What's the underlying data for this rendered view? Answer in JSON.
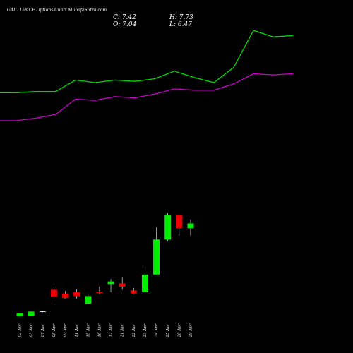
{
  "title": "GAIL 158 CE Options Chart MunafaSutra.com",
  "ohlc": {
    "c": "C: 7.42",
    "h": "H: 7.73",
    "o": "O: 7.04",
    "l": "L: 6.47"
  },
  "colors": {
    "up": "#00ee00",
    "down": "#ee0000",
    "doji": "#ffffff",
    "upper_band": "#00dd00",
    "lower_band": "#cc00cc",
    "background": "#000000"
  },
  "chart_data": {
    "type": "candlestick",
    "categories": [
      "02 Apr",
      "03 Apr",
      "07 Apr",
      "08 Apr",
      "09 Apr",
      "11 Apr",
      "15 Apr",
      "16 Apr",
      "17 Apr",
      "21 Apr",
      "22 Apr",
      "23 Apr",
      "24 Apr",
      "25 Apr",
      "28 Apr",
      "29 Apr"
    ],
    "candles": [
      {
        "date": "02 Apr",
        "open": 0.1,
        "high": 0.35,
        "low": 0.08,
        "close": 0.33
      },
      {
        "date": "03 Apr",
        "open": 0.15,
        "high": 0.5,
        "low": 0.15,
        "close": 0.48
      },
      {
        "date": "07 Apr",
        "open": 0.5,
        "high": 0.55,
        "low": 0.42,
        "close": 0.52
      },
      {
        "date": "08 Apr",
        "open": 2.2,
        "high": 2.65,
        "low": 1.25,
        "close": 1.65
      },
      {
        "date": "09 Apr",
        "open": 1.9,
        "high": 2.1,
        "low": 1.5,
        "close": 1.55
      },
      {
        "date": "11 Apr",
        "open": 2.0,
        "high": 2.25,
        "low": 1.5,
        "close": 1.72
      },
      {
        "date": "15 Apr",
        "open": 1.1,
        "high": 1.9,
        "low": 1.1,
        "close": 1.7
      },
      {
        "date": "16 Apr",
        "open": 2.05,
        "high": 2.45,
        "low": 1.85,
        "close": 1.95
      },
      {
        "date": "17 Apr",
        "open": 2.65,
        "high": 3.05,
        "low": 2.0,
        "close": 2.85
      },
      {
        "date": "21 Apr",
        "open": 2.7,
        "high": 3.2,
        "low": 2.2,
        "close": 2.45
      },
      {
        "date": "22 Apr",
        "open": 2.15,
        "high": 2.35,
        "low": 1.85,
        "close": 1.9
      },
      {
        "date": "23 Apr",
        "open": 2.0,
        "high": 3.8,
        "low": 2.0,
        "close": 3.4
      },
      {
        "date": "24 Apr",
        "open": 3.4,
        "high": 7.1,
        "low": 3.4,
        "close": 6.15
      },
      {
        "date": "25 Apr",
        "open": 6.15,
        "high": 8.25,
        "low": 6.0,
        "close": 8.1
      },
      {
        "date": "28 Apr",
        "open": 8.1,
        "high": 8.1,
        "low": 6.45,
        "close": 7.06
      },
      {
        "date": "29 Apr",
        "open": 7.04,
        "high": 7.73,
        "low": 6.47,
        "close": 7.42
      }
    ],
    "upper_band": [
      17.7,
      17.7,
      17.8,
      17.8,
      18.7,
      18.5,
      18.7,
      18.6,
      18.8,
      19.4,
      18.9,
      18.5,
      19.7,
      22.6,
      22.1,
      22.2
    ],
    "lower_band": [
      15.5,
      15.5,
      15.7,
      16.0,
      17.2,
      17.1,
      17.4,
      17.3,
      17.6,
      18.0,
      17.9,
      17.9,
      18.4,
      19.2,
      19.1,
      19.2
    ],
    "ylim": [
      0,
      24
    ],
    "grid": false,
    "legend": "none"
  }
}
